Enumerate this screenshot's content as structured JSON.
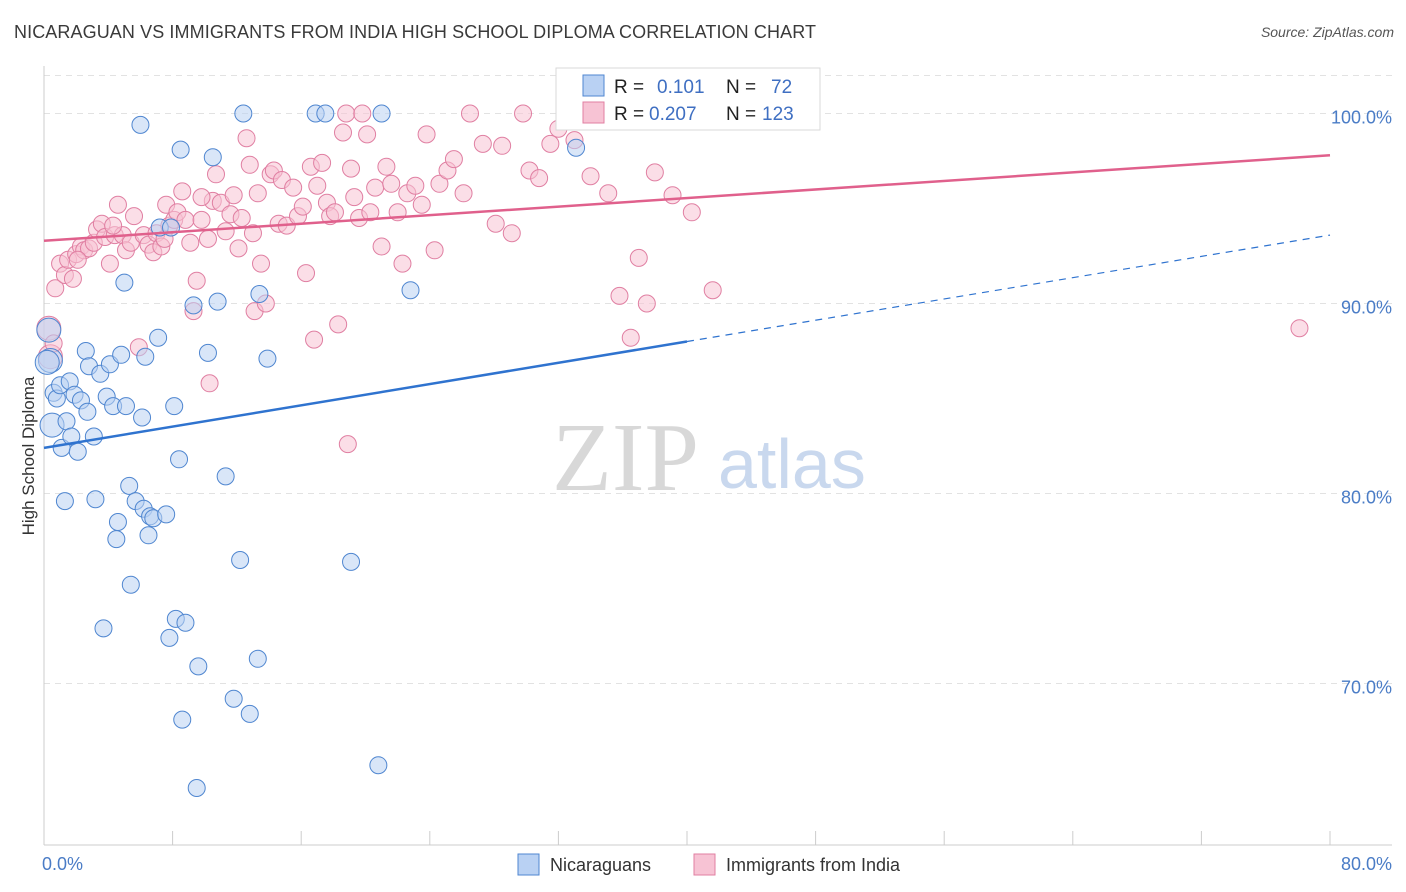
{
  "title": "NICARAGUAN VS IMMIGRANTS FROM INDIA HIGH SCHOOL DIPLOMA CORRELATION CHART",
  "source": "Source: ZipAtlas.com",
  "watermark": {
    "zip": "ZIP",
    "atlas": "atlas"
  },
  "colors": {
    "blue_fill": "#b9d1f3",
    "blue_stroke": "#4f86d0",
    "blue_line": "#2f73cf",
    "pink_fill": "#f7c3d4",
    "pink_stroke": "#e07fa2",
    "pink_line": "#e0608c",
    "tick_text": "#4a7cc6"
  },
  "legend_box": {
    "rows": [
      {
        "r_label": "R =",
        "r_value": "0.101",
        "n_label": "N =",
        "n_value": "72"
      },
      {
        "r_label": "R =",
        "r_value": "0.207",
        "n_label": "N =",
        "n_value": "123"
      }
    ]
  },
  "chart_data": {
    "type": "scatter",
    "title": "NICARAGUAN VS IMMIGRANTS FROM INDIA HIGH SCHOOL DIPLOMA CORRELATION CHART",
    "xlabel": "",
    "ylabel": "High School Diploma",
    "xlim": [
      0,
      80
    ],
    "ylim": [
      61.5,
      102.5
    ],
    "x_tick_labels": [
      "0.0%",
      "80.0%"
    ],
    "y_ticks": [
      70,
      80,
      90,
      100
    ],
    "y_tick_labels": [
      "70.0%",
      "80.0%",
      "90.0%",
      "100.0%"
    ],
    "grid": true,
    "legend": [
      "Nicaraguans",
      "Immigrants from India"
    ],
    "series": [
      {
        "name": "Nicaraguans",
        "r": 0.101,
        "n": 72,
        "trend": {
          "x0": 0,
          "y0": 82.4,
          "x1": 40,
          "y1": 88.0,
          "dashed_to_x": 80,
          "dashed_to_y": 93.6
        },
        "points": [
          [
            0.3,
            88.6
          ],
          [
            0.4,
            87.0
          ],
          [
            0.5,
            83.6
          ],
          [
            0.6,
            85.3
          ],
          [
            0.8,
            85.0
          ],
          [
            1.0,
            85.7
          ],
          [
            1.1,
            82.4
          ],
          [
            1.3,
            79.6
          ],
          [
            1.4,
            83.8
          ],
          [
            1.6,
            85.9
          ],
          [
            1.7,
            83.0
          ],
          [
            1.9,
            85.2
          ],
          [
            2.1,
            82.2
          ],
          [
            2.3,
            84.9
          ],
          [
            2.6,
            87.5
          ],
          [
            2.7,
            84.3
          ],
          [
            2.8,
            86.7
          ],
          [
            3.1,
            83.0
          ],
          [
            3.2,
            79.7
          ],
          [
            3.5,
            86.3
          ],
          [
            3.7,
            72.9
          ],
          [
            3.9,
            85.1
          ],
          [
            4.1,
            86.8
          ],
          [
            4.3,
            84.6
          ],
          [
            4.5,
            77.6
          ],
          [
            4.6,
            78.5
          ],
          [
            4.8,
            87.3
          ],
          [
            5.0,
            91.1
          ],
          [
            5.1,
            84.6
          ],
          [
            5.3,
            80.4
          ],
          [
            5.4,
            75.2
          ],
          [
            5.7,
            79.6
          ],
          [
            6.0,
            99.4
          ],
          [
            6.1,
            84.0
          ],
          [
            6.2,
            79.2
          ],
          [
            6.3,
            87.2
          ],
          [
            6.5,
            77.8
          ],
          [
            6.6,
            78.8
          ],
          [
            6.8,
            78.7
          ],
          [
            7.1,
            88.2
          ],
          [
            7.2,
            94.0
          ],
          [
            7.6,
            78.9
          ],
          [
            7.8,
            72.4
          ],
          [
            7.9,
            94.0
          ],
          [
            8.1,
            84.6
          ],
          [
            8.2,
            73.4
          ],
          [
            8.4,
            81.8
          ],
          [
            8.5,
            98.1
          ],
          [
            8.6,
            68.1
          ],
          [
            8.8,
            73.2
          ],
          [
            9.3,
            89.9
          ],
          [
            9.5,
            64.5
          ],
          [
            9.6,
            70.9
          ],
          [
            10.2,
            87.4
          ],
          [
            10.5,
            97.7
          ],
          [
            10.8,
            90.1
          ],
          [
            11.3,
            80.9
          ],
          [
            11.8,
            69.2
          ],
          [
            12.2,
            76.5
          ],
          [
            12.4,
            100.0
          ],
          [
            12.8,
            68.4
          ],
          [
            13.3,
            71.3
          ],
          [
            13.4,
            90.5
          ],
          [
            13.9,
            87.1
          ],
          [
            16.9,
            100.0
          ],
          [
            17.5,
            100.0
          ],
          [
            19.1,
            76.4
          ],
          [
            20.8,
            65.7
          ],
          [
            21.0,
            100.0
          ],
          [
            22.8,
            90.7
          ],
          [
            33.1,
            98.2
          ],
          [
            0.2,
            86.9
          ]
        ]
      },
      {
        "name": "Immigrants from India",
        "r": 0.207,
        "n": 123,
        "trend": {
          "x0": 0,
          "y0": 93.3,
          "x1": 80,
          "y1": 97.8
        },
        "points": [
          [
            0.3,
            88.7
          ],
          [
            0.4,
            87.2
          ],
          [
            0.6,
            87.9
          ],
          [
            0.7,
            90.8
          ],
          [
            1.0,
            92.1
          ],
          [
            1.3,
            91.5
          ],
          [
            1.5,
            92.3
          ],
          [
            1.8,
            91.3
          ],
          [
            2.0,
            92.6
          ],
          [
            2.3,
            93.0
          ],
          [
            2.5,
            92.8
          ],
          [
            2.8,
            92.9
          ],
          [
            3.1,
            93.2
          ],
          [
            3.3,
            93.9
          ],
          [
            3.6,
            94.2
          ],
          [
            3.8,
            93.5
          ],
          [
            4.1,
            92.1
          ],
          [
            4.4,
            93.6
          ],
          [
            4.6,
            95.2
          ],
          [
            4.9,
            93.6
          ],
          [
            5.1,
            92.8
          ],
          [
            5.4,
            93.2
          ],
          [
            5.6,
            94.6
          ],
          [
            5.9,
            87.7
          ],
          [
            6.2,
            93.6
          ],
          [
            6.5,
            93.1
          ],
          [
            6.8,
            92.7
          ],
          [
            7.0,
            93.7
          ],
          [
            7.3,
            93.0
          ],
          [
            7.6,
            95.2
          ],
          [
            7.8,
            94.1
          ],
          [
            8.1,
            94.4
          ],
          [
            8.3,
            94.8
          ],
          [
            8.6,
            95.9
          ],
          [
            8.8,
            94.4
          ],
          [
            9.1,
            93.2
          ],
          [
            9.3,
            89.6
          ],
          [
            9.5,
            91.2
          ],
          [
            9.8,
            94.4
          ],
          [
            10.2,
            93.4
          ],
          [
            10.5,
            95.4
          ],
          [
            10.7,
            96.8
          ],
          [
            11.0,
            95.3
          ],
          [
            11.3,
            93.8
          ],
          [
            11.6,
            94.7
          ],
          [
            11.8,
            95.7
          ],
          [
            12.1,
            92.9
          ],
          [
            12.3,
            94.5
          ],
          [
            12.6,
            98.7
          ],
          [
            12.8,
            97.3
          ],
          [
            13.1,
            89.6
          ],
          [
            13.3,
            95.8
          ],
          [
            13.5,
            92.1
          ],
          [
            13.8,
            90.0
          ],
          [
            14.1,
            96.8
          ],
          [
            14.3,
            97.0
          ],
          [
            14.6,
            94.2
          ],
          [
            14.8,
            96.5
          ],
          [
            15.1,
            94.1
          ],
          [
            15.5,
            96.1
          ],
          [
            15.8,
            94.6
          ],
          [
            16.1,
            95.1
          ],
          [
            16.3,
            91.6
          ],
          [
            16.6,
            97.2
          ],
          [
            16.8,
            88.1
          ],
          [
            17.0,
            96.2
          ],
          [
            17.3,
            97.4
          ],
          [
            17.6,
            95.3
          ],
          [
            17.8,
            94.6
          ],
          [
            18.1,
            94.8
          ],
          [
            18.3,
            88.9
          ],
          [
            18.6,
            99.0
          ],
          [
            18.8,
            100.0
          ],
          [
            19.1,
            97.1
          ],
          [
            19.3,
            95.6
          ],
          [
            19.6,
            94.5
          ],
          [
            19.8,
            100.0
          ],
          [
            20.1,
            98.9
          ],
          [
            20.3,
            94.8
          ],
          [
            20.6,
            96.1
          ],
          [
            21.0,
            93.0
          ],
          [
            21.3,
            97.2
          ],
          [
            21.6,
            96.3
          ],
          [
            22.0,
            94.8
          ],
          [
            22.3,
            92.1
          ],
          [
            22.6,
            95.8
          ],
          [
            23.1,
            96.2
          ],
          [
            23.5,
            95.2
          ],
          [
            23.8,
            98.9
          ],
          [
            24.3,
            92.8
          ],
          [
            24.6,
            96.3
          ],
          [
            25.1,
            97.0
          ],
          [
            25.5,
            97.6
          ],
          [
            26.1,
            95.8
          ],
          [
            26.5,
            100.0
          ],
          [
            27.3,
            98.4
          ],
          [
            28.1,
            94.2
          ],
          [
            28.5,
            98.3
          ],
          [
            29.1,
            93.7
          ],
          [
            29.8,
            100.0
          ],
          [
            30.2,
            97.0
          ],
          [
            30.8,
            96.6
          ],
          [
            31.5,
            98.4
          ],
          [
            32.0,
            99.2
          ],
          [
            33.0,
            98.6
          ],
          [
            34.0,
            96.7
          ],
          [
            35.1,
            95.8
          ],
          [
            35.8,
            90.4
          ],
          [
            36.5,
            88.2
          ],
          [
            37.0,
            92.4
          ],
          [
            37.5,
            90.0
          ],
          [
            38.0,
            96.9
          ],
          [
            39.1,
            95.7
          ],
          [
            40.3,
            94.8
          ],
          [
            41.6,
            90.7
          ],
          [
            18.9,
            82.6
          ],
          [
            10.3,
            85.8
          ],
          [
            7.5,
            93.4
          ],
          [
            13.0,
            93.7
          ],
          [
            9.8,
            95.6
          ],
          [
            78.1,
            88.7
          ],
          [
            4.3,
            94.1
          ],
          [
            2.1,
            92.3
          ]
        ]
      }
    ]
  }
}
